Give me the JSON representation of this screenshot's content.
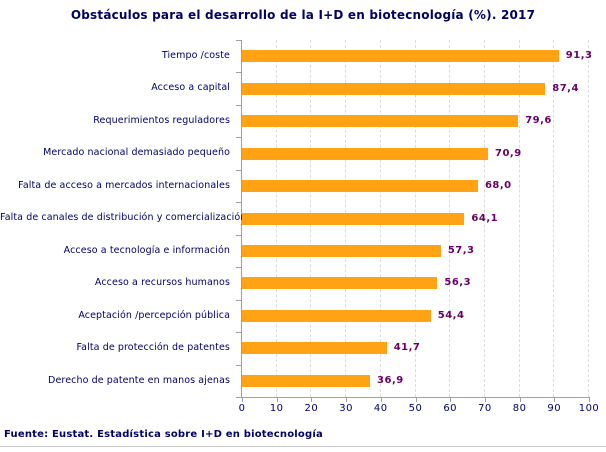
{
  "page": {
    "background": "#FFFFFF",
    "divider_color": "#C9C9C9"
  },
  "chart_data": {
    "type": "bar",
    "orientation": "horizontal",
    "title": "Obstáculos para el desarrollo de la I+D en biotecnología (%). 2017",
    "categories": [
      "Tiempo /coste",
      "Acceso a capital",
      "Requerimientos reguladores",
      "Mercado nacional demasiado pequeño",
      "Falta de acceso a mercados internacionales",
      "Falta de canales de distribución y comercialización",
      "Acceso a tecnología e información",
      "Acceso a recursos humanos",
      "Aceptación /percepción pública",
      "Falta de protección de patentes",
      "Derecho de patente en manos ajenas"
    ],
    "values": [
      91.3,
      87.4,
      79.6,
      70.9,
      68.0,
      64.1,
      57.3,
      56.3,
      54.4,
      41.7,
      36.9
    ],
    "value_labels": [
      "91,3",
      "87,4",
      "79,6",
      "70,9",
      "68,0",
      "64,1",
      "57,3",
      "56,3",
      "54,4",
      "41,7",
      "36,9"
    ],
    "xlim": [
      0,
      100
    ],
    "x_ticks": [
      0,
      10,
      20,
      30,
      40,
      50,
      60,
      70,
      80,
      90,
      100
    ],
    "grid": "vertical-dashed",
    "legend": "none",
    "bar_color": "#FFA213",
    "value_label_color": "#660066",
    "text_color": "#000066",
    "axis_color": "#A0A0A0",
    "grid_color": "#DCDCDC"
  },
  "footer": {
    "source": "Fuente: Eustat. Estadística sobre I+D en biotecnología"
  }
}
